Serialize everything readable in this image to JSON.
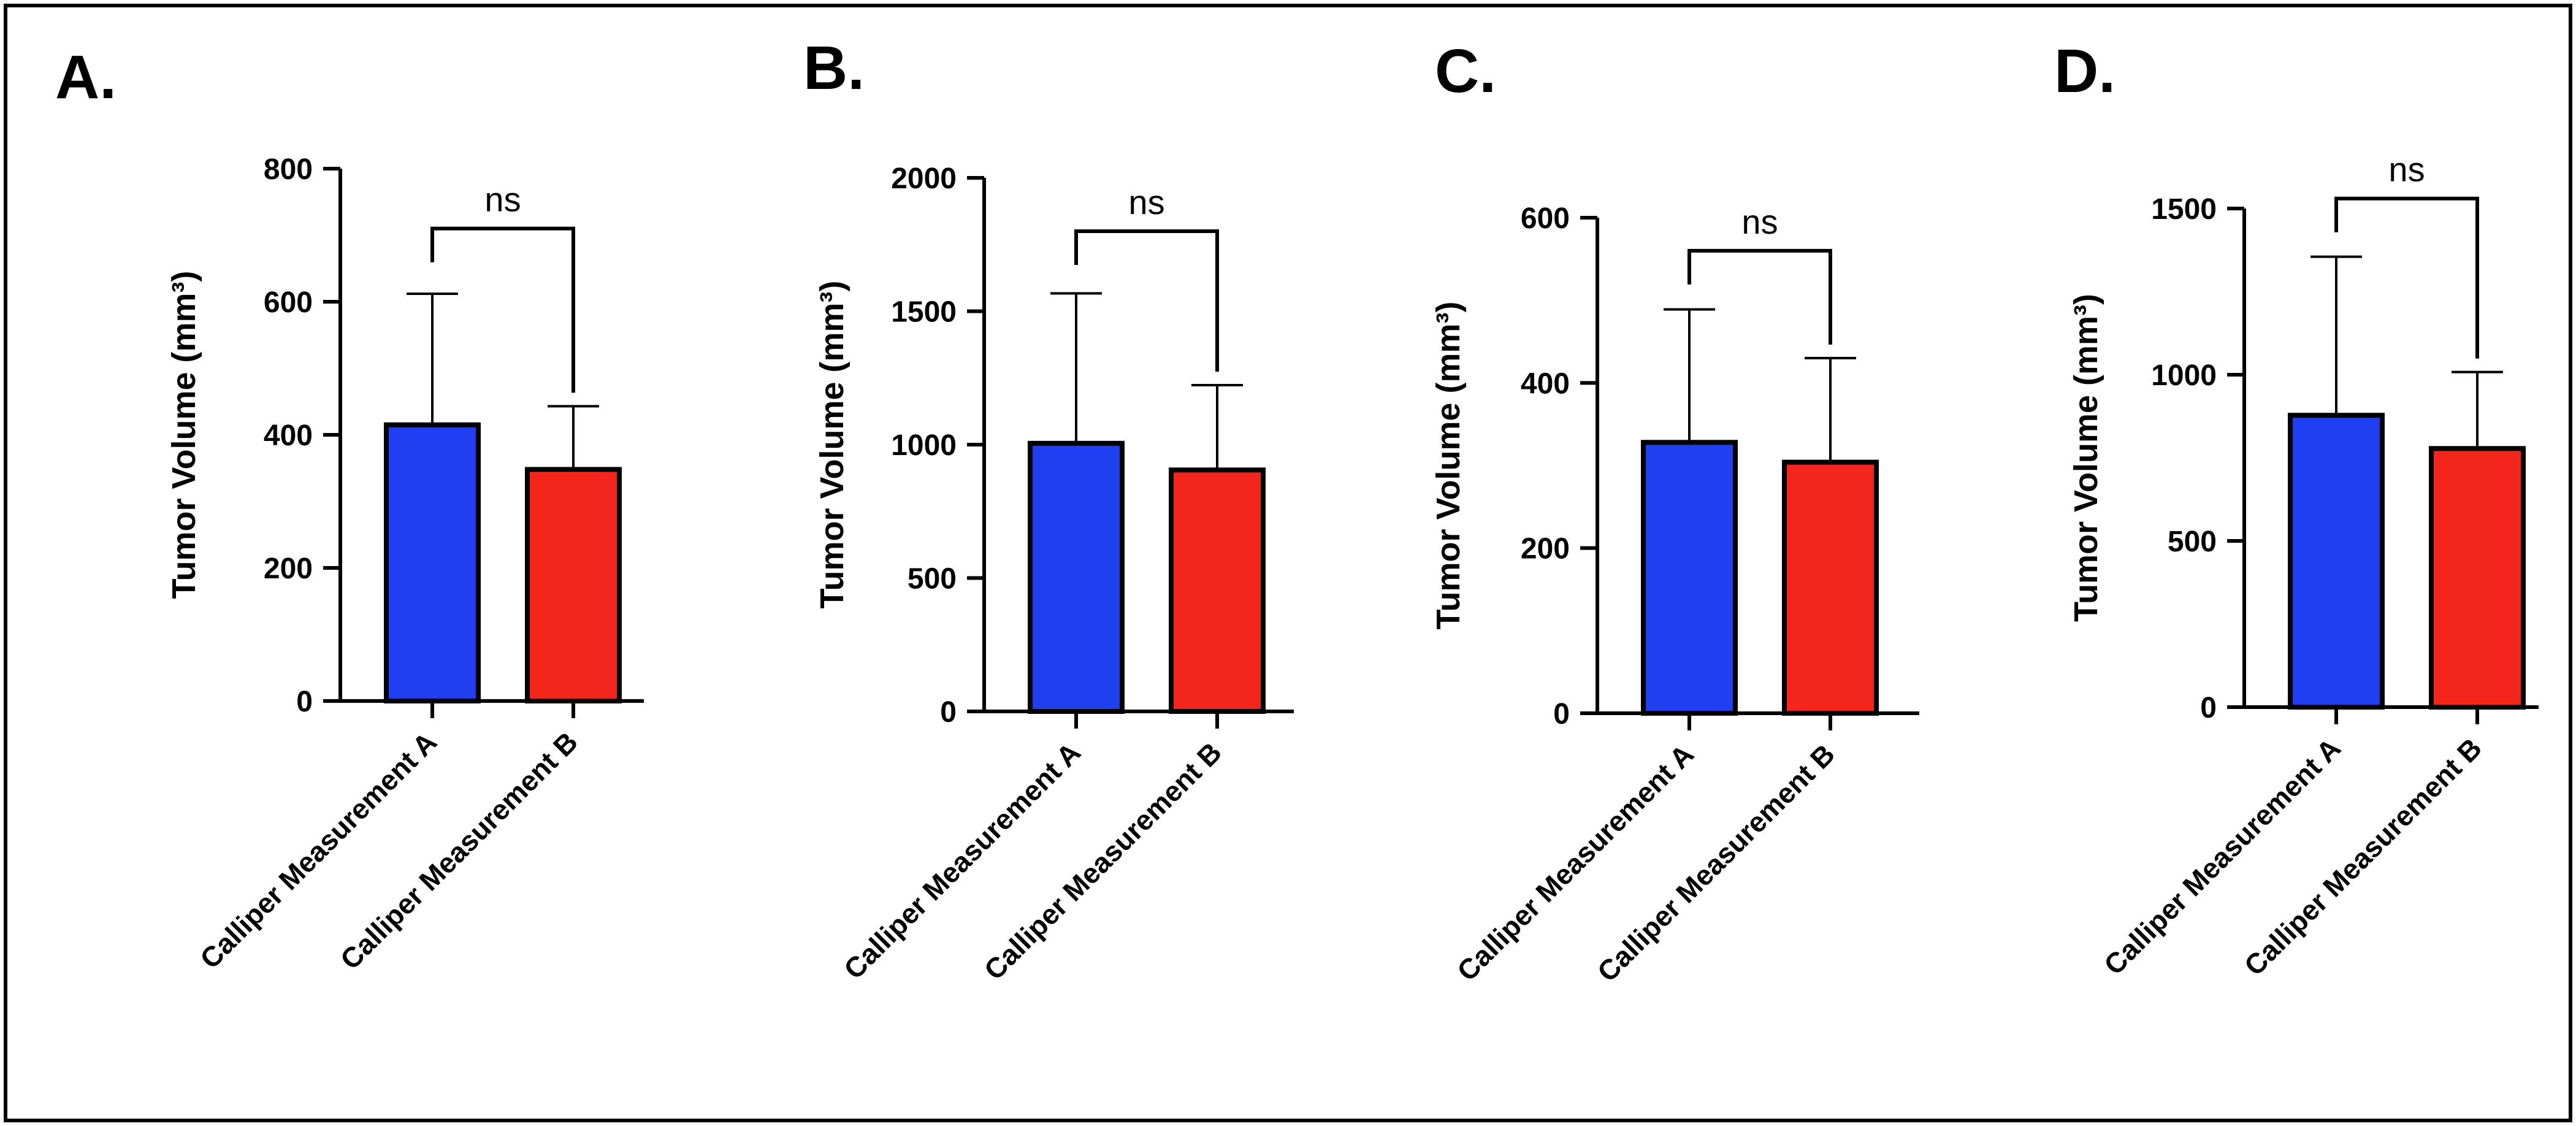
{
  "colors": {
    "series_a": "#1f3ff0",
    "series_b": "#f4261c",
    "axis": "#000000"
  },
  "chart_data": [
    {
      "type": "bar",
      "panel_label": "A.",
      "categories": [
        "Calliper Measurement A",
        "Calliper Measurement B"
      ],
      "values": [
        415,
        348
      ],
      "error_plus": [
        197,
        95
      ],
      "yticks": [
        0,
        200,
        400,
        600,
        800
      ],
      "ylabel": "Tumor Volume (mm³)",
      "ylim": [
        0,
        800
      ],
      "significance": {
        "label": "ns",
        "y": 710
      }
    },
    {
      "type": "bar",
      "panel_label": "B.",
      "categories": [
        "Calliper Measurement A",
        "Calliper Measurement B"
      ],
      "values": [
        1005,
        905
      ],
      "error_plus": [
        562,
        318
      ],
      "yticks": [
        0,
        500,
        1000,
        1500,
        2000
      ],
      "ylabel": "Tumor Volume (mm³)",
      "ylim": [
        0,
        2000
      ],
      "significance": {
        "label": "ns",
        "y": 1800
      }
    },
    {
      "type": "bar",
      "panel_label": "C.",
      "categories": [
        "Calliper Measurement A",
        "Calliper Measurement B"
      ],
      "values": [
        328,
        304
      ],
      "error_plus": [
        161,
        126
      ],
      "yticks": [
        0,
        200,
        400,
        600
      ],
      "ylabel": "Tumor Volume (mm³)",
      "ylim": [
        0,
        600
      ],
      "significance": {
        "label": "ns",
        "y": 560
      }
    },
    {
      "type": "bar",
      "panel_label": "D.",
      "categories": [
        "Calliper Measurement A",
        "Calliper Measurement B"
      ],
      "values": [
        878,
        778
      ],
      "error_plus": [
        477,
        230
      ],
      "yticks": [
        0,
        500,
        1000,
        1500
      ],
      "ylabel": "Tumor Volume (mm³)",
      "ylim": [
        0,
        1500
      ],
      "significance": {
        "label": "ns",
        "y": 1530
      }
    }
  ]
}
